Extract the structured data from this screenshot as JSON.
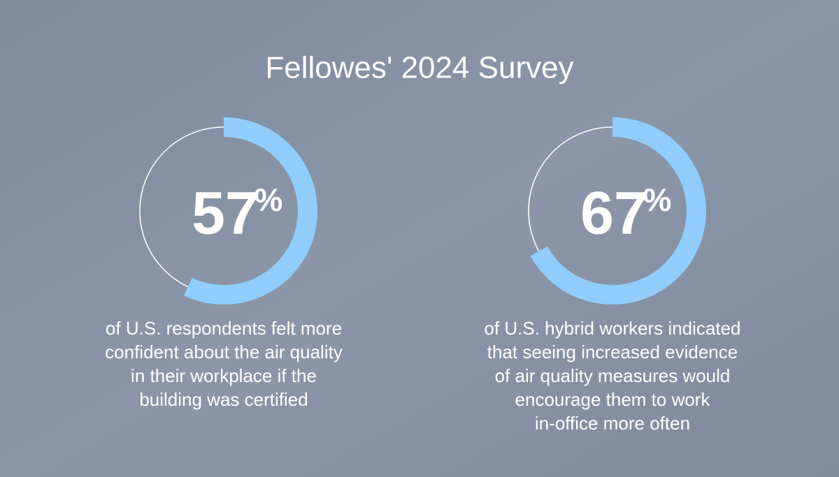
{
  "title": "Fellowes' 2024 Survey",
  "chart_data": [
    {
      "type": "donut",
      "values": [
        57
      ],
      "unit": "%",
      "color": "#90cdfb",
      "caption": [
        "of U.S. respondents felt more",
        "confident about the air quality",
        "in their workplace if the",
        "building was certified"
      ]
    },
    {
      "type": "donut",
      "values": [
        67
      ],
      "unit": "%",
      "color": "#90cdfb",
      "caption": [
        "of U.S. hybrid workers indicated",
        "that seeing increased evidence",
        "of air quality measures would",
        "encourage them to work",
        "in-office more often"
      ]
    }
  ]
}
